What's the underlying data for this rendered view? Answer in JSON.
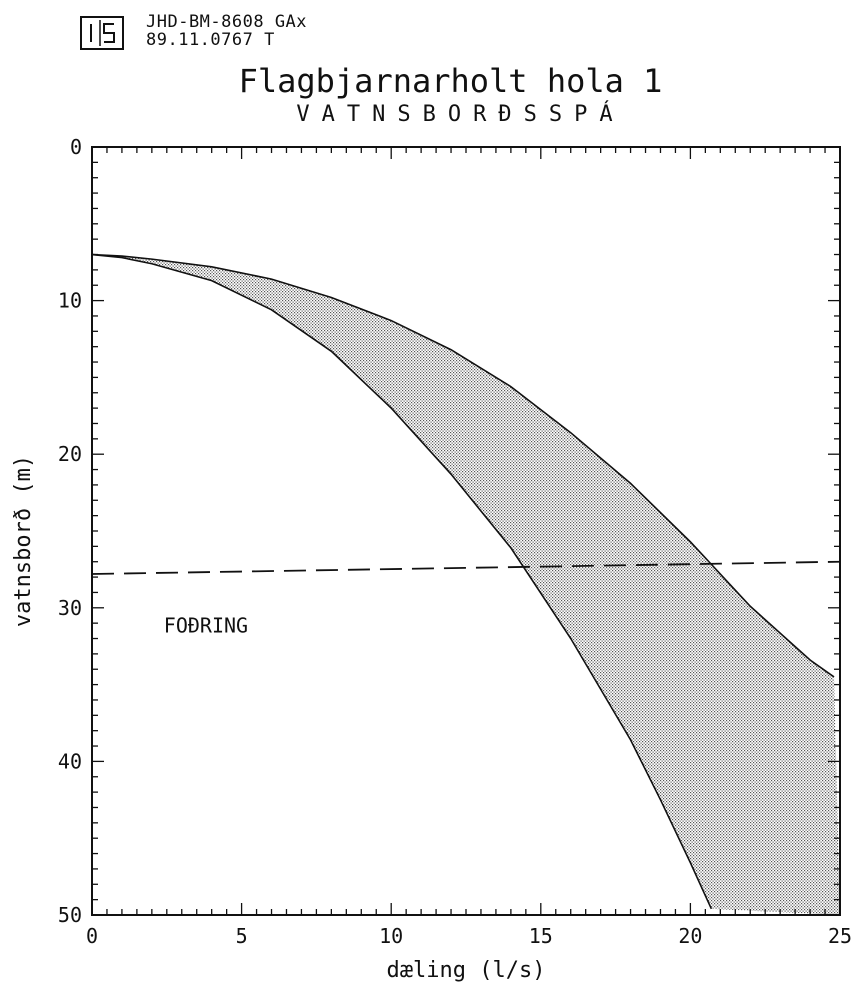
{
  "header": {
    "logo_text": "OS",
    "line1": "JHD-BM-8608 GAx",
    "line2": "89.11.0767  T"
  },
  "chart_data": {
    "type": "area",
    "title": "Flagbjarnarholt hola 1",
    "subtitle": "VATNSBORÐSSPÁ",
    "xlabel": "dæling (l/s)",
    "ylabel": "vatnsborð (m)",
    "xlim": [
      0,
      25
    ],
    "ylim": [
      0,
      50
    ],
    "y_inverted": true,
    "x_ticks": [
      0,
      5,
      10,
      15,
      20,
      25
    ],
    "x_tick_labels": [
      "0",
      "5",
      "10",
      "15",
      "20",
      "25"
    ],
    "y_ticks": [
      0,
      10,
      20,
      30,
      40,
      50
    ],
    "y_tick_labels": [
      "0",
      "10",
      "20",
      "30",
      "40",
      "50"
    ],
    "grid": false,
    "series": [
      {
        "x": [
          0,
          1,
          2,
          4,
          6,
          8,
          10,
          12,
          14,
          16,
          18,
          20,
          22,
          24,
          24.8
        ],
        "y": [
          7.0,
          7.1,
          7.3,
          7.8,
          8.6,
          9.8,
          11.3,
          13.2,
          15.6,
          18.6,
          21.9,
          25.7,
          29.9,
          33.4,
          34.5
        ]
      },
      {
        "x": [
          0,
          1,
          2,
          4,
          6,
          8,
          10,
          12,
          14,
          16,
          18,
          19,
          20,
          20.7
        ],
        "y": [
          7.0,
          7.2,
          7.6,
          8.7,
          10.6,
          13.3,
          17.0,
          21.3,
          26.1,
          32.0,
          38.6,
          42.5,
          46.6,
          49.6
        ]
      }
    ],
    "band_fill": "#bcbcbc",
    "reference_line": {
      "label": "FOÐRING",
      "x": [
        0,
        25
      ],
      "y": [
        27.8,
        27.0
      ],
      "style": "dashed"
    }
  }
}
